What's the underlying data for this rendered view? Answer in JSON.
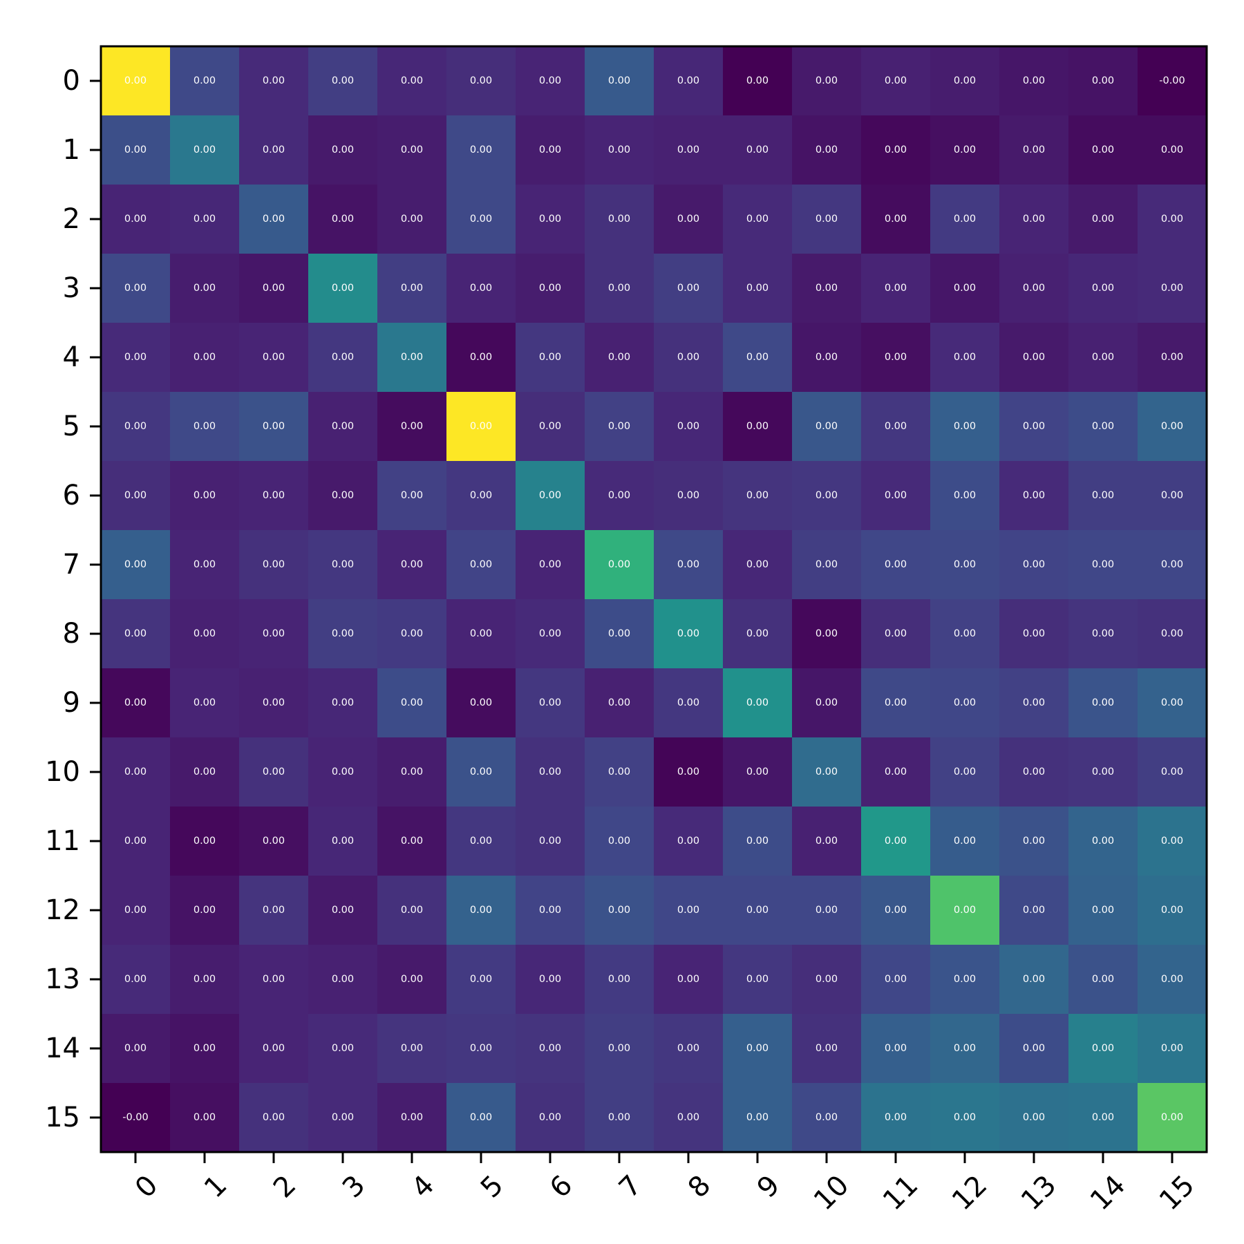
{
  "chart_data": {
    "type": "heatmap",
    "title": "",
    "xlabel": "",
    "ylabel": "",
    "colormap": "viridis",
    "grid": false,
    "x_tick_labels": [
      "0",
      "1",
      "2",
      "3",
      "4",
      "5",
      "6",
      "7",
      "8",
      "9",
      "10",
      "11",
      "12",
      "13",
      "14",
      "15"
    ],
    "y_tick_labels": [
      "0",
      "1",
      "2",
      "3",
      "4",
      "5",
      "6",
      "7",
      "8",
      "9",
      "10",
      "11",
      "12",
      "13",
      "14",
      "15"
    ],
    "cell_labels": [
      [
        "0.00",
        "0.00",
        "0.00",
        "0.00",
        "0.00",
        "0.00",
        "0.00",
        "0.00",
        "0.00",
        "0.00",
        "0.00",
        "0.00",
        "0.00",
        "0.00",
        "0.00",
        "-0.00"
      ],
      [
        "0.00",
        "0.00",
        "0.00",
        "0.00",
        "0.00",
        "0.00",
        "0.00",
        "0.00",
        "0.00",
        "0.00",
        "0.00",
        "0.00",
        "0.00",
        "0.00",
        "0.00",
        "0.00"
      ],
      [
        "0.00",
        "0.00",
        "0.00",
        "0.00",
        "0.00",
        "0.00",
        "0.00",
        "0.00",
        "0.00",
        "0.00",
        "0.00",
        "0.00",
        "0.00",
        "0.00",
        "0.00",
        "0.00"
      ],
      [
        "0.00",
        "0.00",
        "0.00",
        "0.00",
        "0.00",
        "0.00",
        "0.00",
        "0.00",
        "0.00",
        "0.00",
        "0.00",
        "0.00",
        "0.00",
        "0.00",
        "0.00",
        "0.00"
      ],
      [
        "0.00",
        "0.00",
        "0.00",
        "0.00",
        "0.00",
        "0.00",
        "0.00",
        "0.00",
        "0.00",
        "0.00",
        "0.00",
        "0.00",
        "0.00",
        "0.00",
        "0.00",
        "0.00"
      ],
      [
        "0.00",
        "0.00",
        "0.00",
        "0.00",
        "0.00",
        "0.00",
        "0.00",
        "0.00",
        "0.00",
        "0.00",
        "0.00",
        "0.00",
        "0.00",
        "0.00",
        "0.00",
        "0.00"
      ],
      [
        "0.00",
        "0.00",
        "0.00",
        "0.00",
        "0.00",
        "0.00",
        "0.00",
        "0.00",
        "0.00",
        "0.00",
        "0.00",
        "0.00",
        "0.00",
        "0.00",
        "0.00",
        "0.00"
      ],
      [
        "0.00",
        "0.00",
        "0.00",
        "0.00",
        "0.00",
        "0.00",
        "0.00",
        "0.00",
        "0.00",
        "0.00",
        "0.00",
        "0.00",
        "0.00",
        "0.00",
        "0.00",
        "0.00"
      ],
      [
        "0.00",
        "0.00",
        "0.00",
        "0.00",
        "0.00",
        "0.00",
        "0.00",
        "0.00",
        "0.00",
        "0.00",
        "0.00",
        "0.00",
        "0.00",
        "0.00",
        "0.00",
        "0.00"
      ],
      [
        "0.00",
        "0.00",
        "0.00",
        "0.00",
        "0.00",
        "0.00",
        "0.00",
        "0.00",
        "0.00",
        "0.00",
        "0.00",
        "0.00",
        "0.00",
        "0.00",
        "0.00",
        "0.00"
      ],
      [
        "0.00",
        "0.00",
        "0.00",
        "0.00",
        "0.00",
        "0.00",
        "0.00",
        "0.00",
        "0.00",
        "0.00",
        "0.00",
        "0.00",
        "0.00",
        "0.00",
        "0.00",
        "0.00"
      ],
      [
        "0.00",
        "0.00",
        "0.00",
        "0.00",
        "0.00",
        "0.00",
        "0.00",
        "0.00",
        "0.00",
        "0.00",
        "0.00",
        "0.00",
        "0.00",
        "0.00",
        "0.00",
        "0.00"
      ],
      [
        "0.00",
        "0.00",
        "0.00",
        "0.00",
        "0.00",
        "0.00",
        "0.00",
        "0.00",
        "0.00",
        "0.00",
        "0.00",
        "0.00",
        "0.00",
        "0.00",
        "0.00",
        "0.00"
      ],
      [
        "0.00",
        "0.00",
        "0.00",
        "0.00",
        "0.00",
        "0.00",
        "0.00",
        "0.00",
        "0.00",
        "0.00",
        "0.00",
        "0.00",
        "0.00",
        "0.00",
        "0.00",
        "0.00"
      ],
      [
        "0.00",
        "0.00",
        "0.00",
        "0.00",
        "0.00",
        "0.00",
        "0.00",
        "0.00",
        "0.00",
        "0.00",
        "0.00",
        "0.00",
        "0.00",
        "0.00",
        "0.00",
        "0.00"
      ],
      [
        "-0.00",
        "0.00",
        "0.00",
        "0.00",
        "0.00",
        "0.00",
        "0.00",
        "0.00",
        "0.00",
        "0.00",
        "0.00",
        "0.00",
        "0.00",
        "0.00",
        "0.00",
        "0.00"
      ]
    ],
    "color_intensity": [
      [
        1.0,
        0.22,
        0.12,
        0.18,
        0.11,
        0.13,
        0.1,
        0.28,
        0.11,
        0.0,
        0.07,
        0.09,
        0.08,
        0.06,
        0.05,
        0.0
      ],
      [
        0.24,
        0.4,
        0.12,
        0.07,
        0.08,
        0.22,
        0.08,
        0.1,
        0.09,
        0.09,
        0.05,
        0.02,
        0.04,
        0.07,
        0.03,
        0.03
      ],
      [
        0.1,
        0.11,
        0.28,
        0.05,
        0.08,
        0.22,
        0.1,
        0.14,
        0.07,
        0.12,
        0.16,
        0.03,
        0.17,
        0.1,
        0.07,
        0.12
      ],
      [
        0.22,
        0.08,
        0.06,
        0.48,
        0.18,
        0.1,
        0.08,
        0.14,
        0.18,
        0.12,
        0.07,
        0.1,
        0.06,
        0.09,
        0.11,
        0.12
      ],
      [
        0.12,
        0.09,
        0.1,
        0.16,
        0.4,
        0.02,
        0.16,
        0.09,
        0.14,
        0.22,
        0.06,
        0.04,
        0.12,
        0.07,
        0.09,
        0.07
      ],
      [
        0.16,
        0.22,
        0.25,
        0.09,
        0.03,
        1.0,
        0.13,
        0.19,
        0.11,
        0.02,
        0.27,
        0.16,
        0.3,
        0.2,
        0.23,
        0.32
      ],
      [
        0.13,
        0.09,
        0.1,
        0.07,
        0.19,
        0.16,
        0.44,
        0.12,
        0.13,
        0.15,
        0.16,
        0.12,
        0.23,
        0.12,
        0.18,
        0.18
      ],
      [
        0.3,
        0.1,
        0.14,
        0.16,
        0.1,
        0.2,
        0.1,
        0.64,
        0.22,
        0.11,
        0.18,
        0.21,
        0.22,
        0.2,
        0.21,
        0.21
      ],
      [
        0.15,
        0.09,
        0.1,
        0.18,
        0.17,
        0.1,
        0.12,
        0.23,
        0.5,
        0.14,
        0.02,
        0.13,
        0.19,
        0.13,
        0.15,
        0.14
      ],
      [
        0.02,
        0.1,
        0.09,
        0.11,
        0.23,
        0.03,
        0.16,
        0.09,
        0.16,
        0.5,
        0.06,
        0.22,
        0.21,
        0.19,
        0.26,
        0.31
      ],
      [
        0.1,
        0.07,
        0.14,
        0.1,
        0.08,
        0.25,
        0.14,
        0.19,
        0.01,
        0.06,
        0.35,
        0.09,
        0.19,
        0.14,
        0.15,
        0.18
      ],
      [
        0.1,
        0.02,
        0.04,
        0.11,
        0.05,
        0.16,
        0.14,
        0.21,
        0.12,
        0.23,
        0.09,
        0.53,
        0.29,
        0.25,
        0.32,
        0.38
      ],
      [
        0.1,
        0.05,
        0.15,
        0.07,
        0.14,
        0.31,
        0.2,
        0.25,
        0.21,
        0.21,
        0.21,
        0.27,
        0.72,
        0.22,
        0.31,
        0.36
      ],
      [
        0.12,
        0.08,
        0.1,
        0.09,
        0.07,
        0.17,
        0.11,
        0.17,
        0.1,
        0.16,
        0.13,
        0.21,
        0.26,
        0.33,
        0.25,
        0.32
      ],
      [
        0.07,
        0.05,
        0.1,
        0.12,
        0.15,
        0.16,
        0.15,
        0.18,
        0.16,
        0.3,
        0.14,
        0.3,
        0.33,
        0.23,
        0.43,
        0.39
      ],
      [
        0.0,
        0.04,
        0.14,
        0.12,
        0.08,
        0.28,
        0.14,
        0.18,
        0.15,
        0.3,
        0.22,
        0.38,
        0.39,
        0.37,
        0.38,
        0.74
      ]
    ]
  }
}
